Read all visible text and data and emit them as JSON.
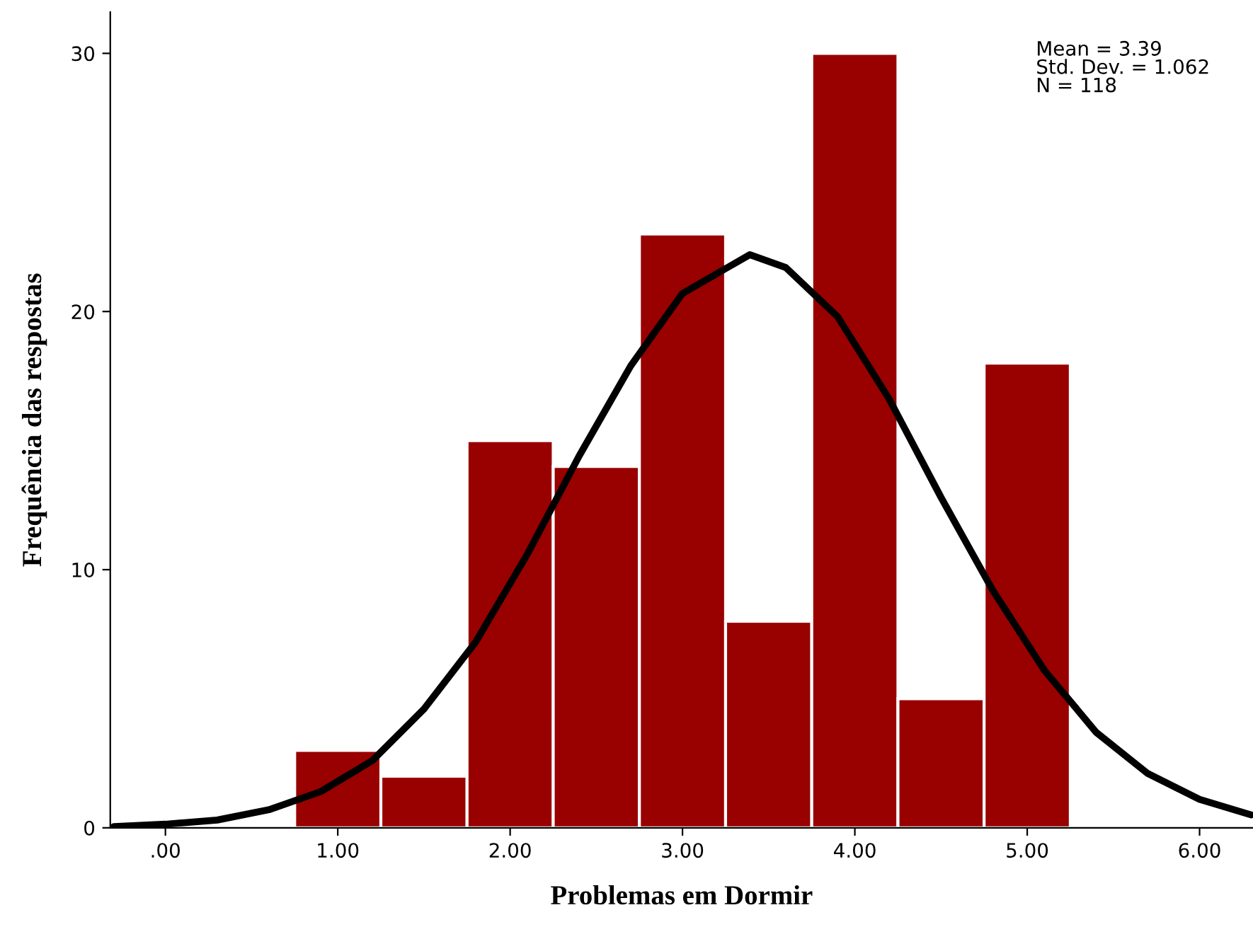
{
  "chart_data": {
    "type": "histogram",
    "xlabel": "Problemas em Dormir",
    "ylabel": "Frequência das respostas",
    "bins": [
      0.75,
      1.25,
      1.75,
      2.25,
      2.75,
      3.25,
      3.75,
      4.25,
      4.75,
      5.25
    ],
    "values": [
      3,
      2,
      15,
      14,
      23,
      8,
      30,
      5,
      18
    ],
    "color": "#990000",
    "series": [
      {
        "type": "line",
        "color": "#000000",
        "line_style": "solid",
        "x": [
          -0.3,
          0.0,
          0.3,
          0.6,
          0.9,
          1.2,
          1.5,
          1.8,
          2.1,
          2.4,
          2.7,
          3.0,
          3.39,
          3.6,
          3.9,
          4.2,
          4.5,
          4.8,
          5.1,
          5.4,
          5.7,
          6.0,
          6.3
        ],
        "values": [
          0.05,
          0.14,
          0.3,
          0.7,
          1.4,
          2.6,
          4.6,
          7.2,
          10.6,
          14.4,
          17.9,
          20.7,
          22.2,
          21.7,
          19.8,
          16.6,
          12.8,
          9.2,
          6.1,
          3.7,
          2.1,
          1.1,
          0.5
        ]
      }
    ],
    "xlim": [
      -0.32,
      6.31
    ],
    "ylim": [
      0,
      31.6
    ],
    "xticks": [
      {
        "value": 0,
        "label": ".00"
      },
      {
        "value": 1,
        "label": "1.00"
      },
      {
        "value": 2,
        "label": "2.00"
      },
      {
        "value": 3,
        "label": "3.00"
      },
      {
        "value": 4,
        "label": "4.00"
      },
      {
        "value": 5,
        "label": "5.00"
      },
      {
        "value": 6,
        "label": "6.00"
      }
    ],
    "yticks": [
      0,
      10,
      20,
      30
    ],
    "grid": false,
    "legend": false,
    "annotations": [
      "Mean = 3.39\nStd. Dev. = 1.062\nN = 118"
    ]
  }
}
